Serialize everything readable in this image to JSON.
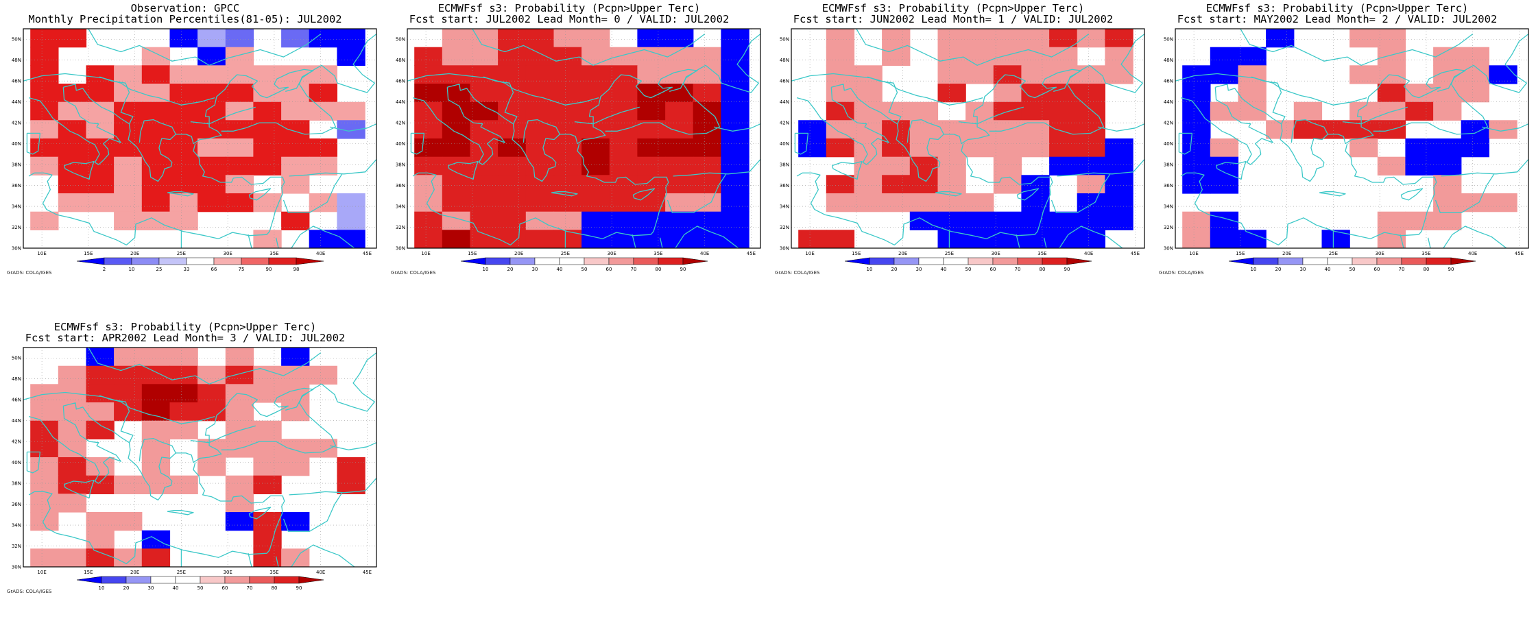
{
  "figure": {
    "panels": [
      {
        "title_line1": "Observation: GPCC",
        "title_line2": "Monthly Precipitation Percentiles(81-05): JUL2002",
        "credit": "GrADS: COLA/IGES",
        "x_ticks": [
          "10E",
          "15E",
          "20E",
          "25E",
          "30E",
          "35E",
          "40E",
          "45E"
        ],
        "y_ticks": [
          "30N",
          "32N",
          "34N",
          "36N",
          "38N",
          "40N",
          "42N",
          "44N",
          "46N",
          "48N",
          "50N"
        ],
        "colorbar": {
          "labels": [
            "2",
            "10",
            "25",
            "33",
            "66",
            "75",
            "90",
            "98"
          ],
          "colors": [
            "#0000ff",
            "#5a5af5",
            "#8c8cf5",
            "#c4c4f8",
            "#ffffff",
            "#f7b0b0",
            "#f06666",
            "#e02020",
            "#c00000"
          ]
        },
        "grid": [
          "RRWWWBLMWMBB",
          "RWWWPWBPWWWB",
          "RWRPRPPPPPPW",
          "RRRPPRRRPPRW",
          "RPPRRRRPRPPP",
          "PRPRRRRRRRWM",
          "RRRRRRPPRRRW",
          "PRRPRRRRRPPW",
          "WRRPRRRPWPWW",
          "WPPPRPRRPWPL",
          "PWWPPPWWWRWL",
          "WWWWWWWWPWBB"
        ]
      },
      {
        "title_line1": "ECMWFsf s3: Probability (Pcpn>Upper Terc)",
        "title_line2": "Fcst start: JUL2002  Lead Month= 0 / VALID: JUL2002",
        "credit": "GrADS: COLA/IGES",
        "x_ticks": [
          "10E",
          "15E",
          "20E",
          "25E",
          "30E",
          "35E",
          "40E",
          "45E"
        ],
        "y_ticks": [
          "30N",
          "32N",
          "34N",
          "36N",
          "38N",
          "40N",
          "42N",
          "44N",
          "46N",
          "48N",
          "50N"
        ],
        "colorbar": {
          "labels": [
            "10",
            "20",
            "30",
            "40",
            "50",
            "60",
            "70",
            "80",
            "90"
          ],
          "colors": [
            "#0000ff",
            "#4646f0",
            "#9696f5",
            "#ffffff",
            "#ffffff",
            "#f8c8c8",
            "#f29a9a",
            "#ea5a5a",
            "#dd2020",
            "#b00000"
          ]
        },
        "grid": [
          "WPPRRPPWBBWB",
          "RPPRRRPPPPPB",
          "RRRRRRRRPPPB",
          "DDRRRRRRDDRB",
          "RDDRRRRRDRDB",
          "RDRRRRRRRRDB",
          "DDRDRRDRDDDB",
          "RRRRRRDRRRRB",
          "PRRRRRRRRRRB",
          "PRRRRRRRRPPB",
          "RPRRPPBBBBBB",
          "RDRRRRBBBBBB"
        ]
      },
      {
        "title_line1": "ECMWFsf s3: Probability (Pcpn>Upper Terc)",
        "title_line2": "Fcst start: JUN2002  Lead Month= 1 / VALID: JUL2002",
        "credit": "GrADS: COLA/IGES",
        "x_ticks": [
          "10E",
          "15E",
          "20E",
          "25E",
          "30E",
          "35E",
          "40E",
          "45E"
        ],
        "y_ticks": [
          "30N",
          "32N",
          "34N",
          "36N",
          "38N",
          "40N",
          "42N",
          "44N",
          "46N",
          "48N",
          "50N"
        ],
        "colorbar": {
          "labels": [
            "10",
            "20",
            "30",
            "40",
            "50",
            "60",
            "70",
            "80",
            "90"
          ],
          "colors": [
            "#0000ff",
            "#4646f0",
            "#9696f5",
            "#ffffff",
            "#ffffff",
            "#f8c8c8",
            "#f29a9a",
            "#ea5a5a",
            "#dd2020",
            "#b00000"
          ]
        },
        "grid": [
          "WPWPWPPPPRPR",
          "WPWPWPPPPPWP",
          "WPPWWPPRPPPP",
          "WPPWWRWPRRRW",
          "WRPPPWPRRRRW",
          "BPPRPPPPPRRW",
          "BRPRPPPPPRRB",
          "WWPPRPWPWBBB",
          "WRPRRPWPBWPB",
          "WPPPPPPWBWBB",
          "WWWWBBBBBBBB",
          "RRWWWBBBBBBW"
        ]
      },
      {
        "title_line1": "ECMWFsf s3: Probability (Pcpn>Upper Terc)",
        "title_line2": "Fcst start: MAY2002  Lead Month= 2 / VALID: JUL2002",
        "credit": "GrADS: COLA/IGES",
        "x_ticks": [
          "10E",
          "15E",
          "20E",
          "25E",
          "30E",
          "35E",
          "40E",
          "45E"
        ],
        "y_ticks": [
          "30N",
          "32N",
          "34N",
          "36N",
          "38N",
          "40N",
          "42N",
          "44N",
          "46N",
          "48N",
          "50N"
        ],
        "colorbar": {
          "labels": [
            "10",
            "20",
            "30",
            "40",
            "50",
            "60",
            "70",
            "80",
            "90"
          ],
          "colors": [
            "#0000ff",
            "#4646f0",
            "#9696f5",
            "#ffffff",
            "#ffffff",
            "#f8c8c8",
            "#f29a9a",
            "#ea5a5a",
            "#dd2020",
            "#b00000"
          ]
        },
        "grid": [
          "WWWBWWPPWWWW",
          "WBBWWWWPWPPW",
          "BBPWWWPPWPPB",
          "BWPWWWWRPPPW",
          "BPPWPWPPRPWW",
          "BWWPRRRRWWBP",
          "BPWWWWPWBBBW",
          "BBWWWWWPBBWW",
          "BBWWWWWWWPWW",
          "WWWWWWWWWPPP",
          "PBWWWWWPPPWW",
          "PBBWWBWPWWWW"
        ]
      },
      {
        "title_line1": "ECMWFsf s3: Probability (Pcpn>Upper Terc)",
        "title_line2": "Fcst start: APR2002  Lead Month= 3 / VALID: JUL2002",
        "credit": "GrADS: COLA/IGES",
        "x_ticks": [
          "10E",
          "15E",
          "20E",
          "25E",
          "30E",
          "35E",
          "40E",
          "45E"
        ],
        "y_ticks": [
          "30N",
          "32N",
          "34N",
          "36N",
          "38N",
          "40N",
          "42N",
          "44N",
          "46N",
          "48N",
          "50N"
        ],
        "colorbar": {
          "labels": [
            "10",
            "20",
            "30",
            "40",
            "50",
            "60",
            "70",
            "80",
            "90"
          ],
          "colors": [
            "#0000ff",
            "#4646f0",
            "#9696f5",
            "#ffffff",
            "#ffffff",
            "#f8c8c8",
            "#f29a9a",
            "#ea5a5a",
            "#dd2020",
            "#b00000"
          ]
        },
        "grid": [
          "WWBPPPWPWBWW",
          "WPRRRRPRPPPW",
          "PPRRDDRPPPWW",
          "PPPRDRRPWPWW",
          "RPRWPPWPPWWW",
          "RPWWPWPPPPPW",
          "PRPWPWPWPPWR",
          "PRRPPPWPRWWR",
          "PPWWWWWPWWWW",
          "PWPPWWWBRBWW",
          "WWPWBWWWRWWW",
          "PPRPRWWWRPWW"
        ]
      }
    ]
  }
}
